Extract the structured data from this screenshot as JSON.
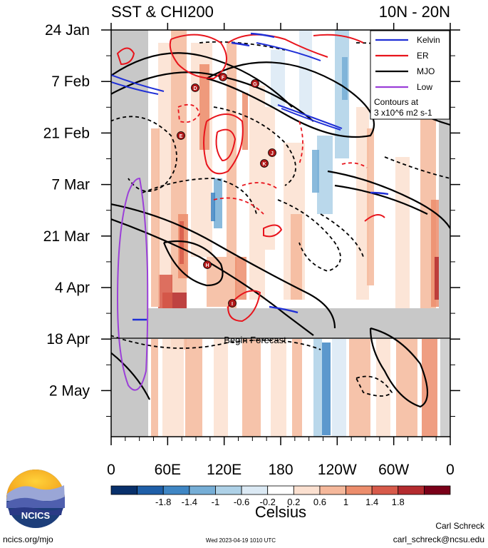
{
  "chart_data": {
    "type": "heatmap",
    "title": "SST & CHI200",
    "region": "10N - 20N",
    "x_ticks": [
      "0",
      "60E",
      "120E",
      "180",
      "120W",
      "60W",
      "0"
    ],
    "y_ticks": [
      "24 Jan",
      "7 Feb",
      "21 Feb",
      "7 Mar",
      "21 Mar",
      "4 Apr",
      "18 Apr",
      "2 May"
    ],
    "xlim_deg_east": [
      0,
      360
    ],
    "colorbar": {
      "unit": "Celsius",
      "labels": [
        "-1.8",
        "-1.4",
        "-1",
        "-0.6",
        "-0.2",
        "0.2",
        "0.6",
        "1",
        "1.4",
        "1.8"
      ],
      "colors": [
        "#08306b",
        "#1f5fa8",
        "#3f86c4",
        "#76aed6",
        "#aed1e7",
        "#dbe9f4",
        "#ffffff",
        "#fbe0d0",
        "#f5b89b",
        "#ec8d6c",
        "#d75a4a",
        "#b42b2f",
        "#7a0019"
      ]
    },
    "legend": {
      "placement": "top-right",
      "entries": [
        {
          "name": "Kelvin",
          "color": "#1f2fd6"
        },
        {
          "name": "ER",
          "color": "#e8141c"
        },
        {
          "name": "MJO",
          "color": "#000000"
        },
        {
          "name": "Low",
          "color": "#9b3fd8"
        }
      ],
      "note_line1": "Contours at",
      "note_line2": "3 x10^6 m2 s-1"
    },
    "forecast_label": "Begin Forecast",
    "tc_markers": [
      "D",
      "F",
      "G",
      "E",
      "J",
      "K",
      "H",
      "I"
    ]
  },
  "footer": {
    "logo_text": "NCICS",
    "website": "ncics.org/mjo",
    "timestamp": "Wed 2023-04-19 1010 UTC",
    "author": "Carl Schreck",
    "email": "carl_schreck@ncsu.edu"
  }
}
